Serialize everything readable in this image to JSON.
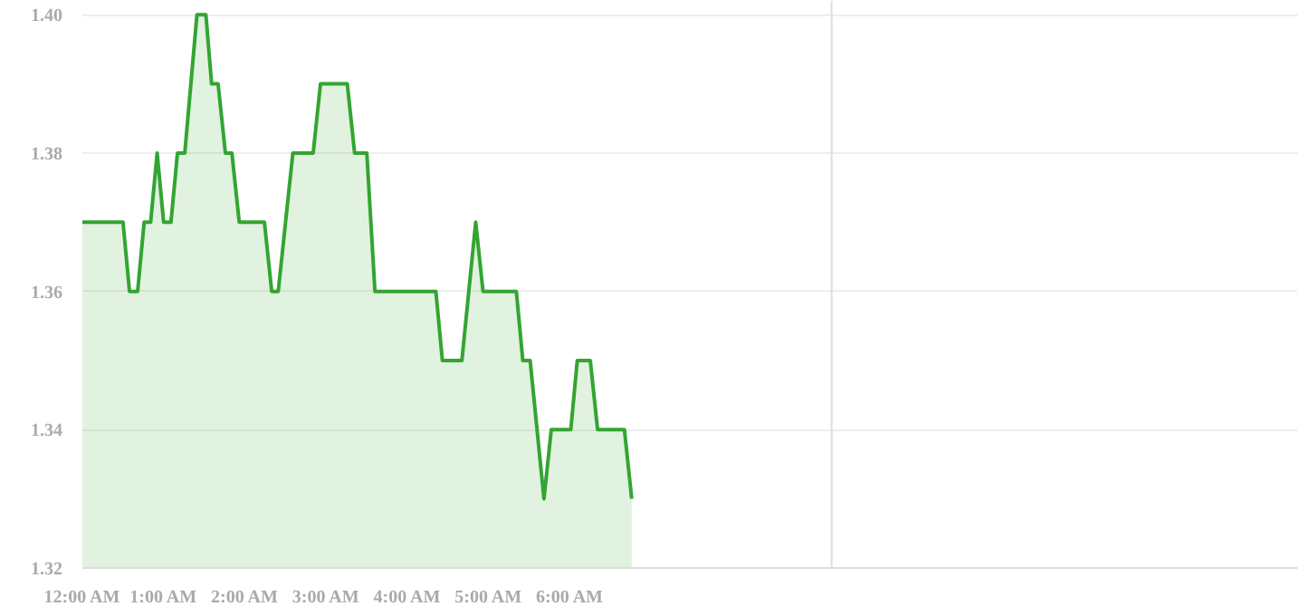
{
  "chart_data": {
    "type": "area",
    "x": [
      0,
      0.5,
      0.58,
      0.68,
      0.76,
      0.84,
      0.92,
      1.0,
      1.09,
      1.17,
      1.26,
      1.41,
      1.52,
      1.59,
      1.67,
      1.76,
      1.84,
      1.93,
      2.24,
      2.33,
      2.41,
      2.59,
      2.84,
      2.93,
      3.26,
      3.35,
      3.5,
      3.6,
      4.35,
      4.43,
      4.67,
      4.84,
      4.93,
      5.34,
      5.42,
      5.51,
      5.68,
      5.77,
      6.01,
      6.09,
      6.25,
      6.34,
      6.67,
      6.76
    ],
    "series": [
      {
        "color": "#33a532",
        "values": [
          1.37,
          1.37,
          1.36,
          1.36,
          1.37,
          1.37,
          1.38,
          1.37,
          1.37,
          1.38,
          1.38,
          1.4,
          1.4,
          1.39,
          1.39,
          1.38,
          1.38,
          1.37,
          1.37,
          1.36,
          1.36,
          1.38,
          1.38,
          1.39,
          1.39,
          1.38,
          1.38,
          1.36,
          1.36,
          1.35,
          1.35,
          1.37,
          1.36,
          1.36,
          1.35,
          1.35,
          1.33,
          1.34,
          1.34,
          1.35,
          1.35,
          1.34,
          1.34,
          1.33
        ]
      }
    ],
    "xlim": [
      0,
      14.95
    ],
    "xticks": [
      {
        "value": 0,
        "label": "12:00 AM"
      },
      {
        "value": 1,
        "label": "1:00 AM"
      },
      {
        "value": 2,
        "label": "2:00 AM"
      },
      {
        "value": 3,
        "label": "3:00 AM"
      },
      {
        "value": 4,
        "label": "4:00 AM"
      },
      {
        "value": 5,
        "label": "5:00 AM"
      },
      {
        "value": 6,
        "label": "6:00 AM"
      }
    ],
    "ylim": [
      1.32,
      1.402
    ],
    "yticks": [
      {
        "value": 1.32,
        "label": "1.32"
      },
      {
        "value": 1.34,
        "label": "1.34"
      },
      {
        "value": 1.36,
        "label": "1.36"
      },
      {
        "value": 1.38,
        "label": "1.38"
      },
      {
        "value": 1.4,
        "label": "1.40"
      }
    ],
    "grid": "y",
    "ref_lines": [
      {
        "axis": "x",
        "value": 9.22,
        "color": "#dddddd"
      }
    ]
  }
}
